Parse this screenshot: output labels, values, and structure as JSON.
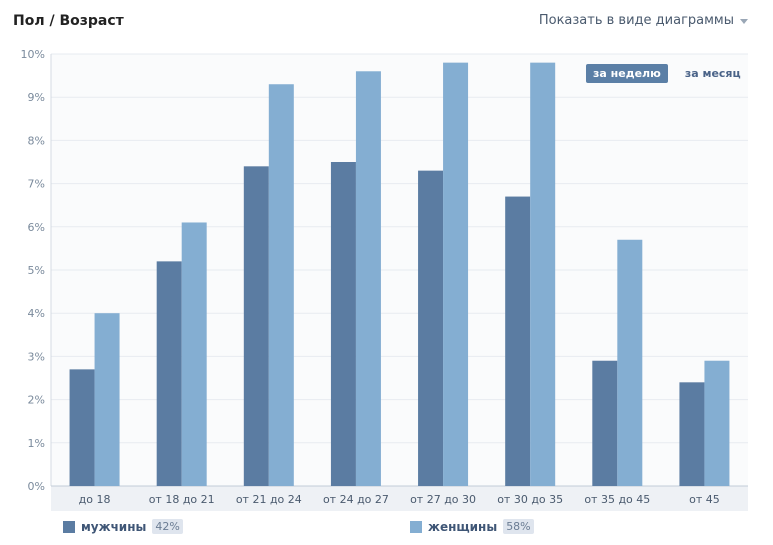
{
  "header": {
    "title": "Пол / Возраст",
    "view_toggle": "Показать в виде диаграммы"
  },
  "period_tabs": [
    {
      "label": "за неделю",
      "active": true
    },
    {
      "label": "за месяц",
      "active": false
    }
  ],
  "legend": [
    {
      "label": "мужчины",
      "percent": "42%",
      "color": "#5b7ca2"
    },
    {
      "label": "женщины",
      "percent": "58%",
      "color": "#84aed2"
    }
  ],
  "chart_data": {
    "type": "bar",
    "categories": [
      "до 18",
      "от 18 до 21",
      "от 21 до 24",
      "от 24 до 27",
      "от 27 до 30",
      "от 30 до 35",
      "от 35 до 45",
      "от 45"
    ],
    "series": [
      {
        "name": "мужчины",
        "color": "#5b7ca2",
        "values": [
          2.7,
          5.2,
          7.4,
          7.5,
          7.3,
          6.7,
          2.9,
          2.4
        ]
      },
      {
        "name": "женщины",
        "color": "#84aed2",
        "values": [
          4.0,
          6.1,
          9.3,
          9.6,
          9.8,
          9.8,
          5.7,
          2.9
        ]
      }
    ],
    "ylim": [
      0,
      10
    ],
    "yticks": [
      "0%",
      "1%",
      "2%",
      "3%",
      "4%",
      "5%",
      "6%",
      "7%",
      "8%",
      "9%",
      "10%"
    ],
    "grid": true
  }
}
